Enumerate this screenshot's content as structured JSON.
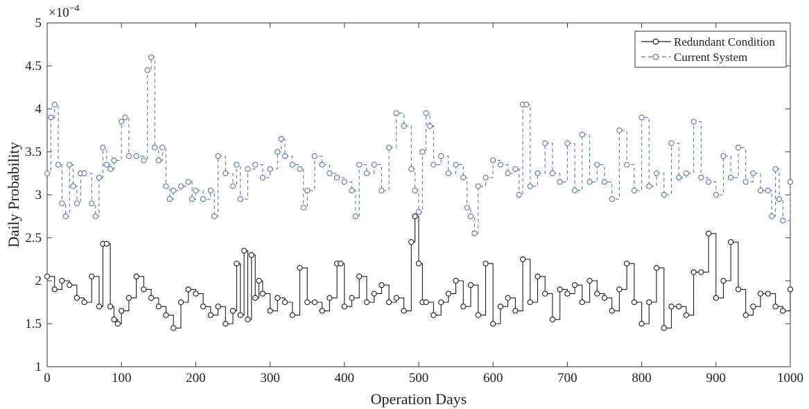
{
  "chart_data": {
    "type": "line",
    "xlabel": "Operation Days",
    "ylabel": "Daily Probability",
    "y_exponent_base": "×10",
    "y_exponent_power": "−4",
    "xlim": [
      0,
      1000
    ],
    "ylim": [
      1,
      5
    ],
    "x_ticks": [
      "0",
      "100",
      "200",
      "300",
      "400",
      "500",
      "600",
      "700",
      "800",
      "900",
      "1000"
    ],
    "y_ticks": [
      "1",
      "1.5",
      "2",
      "2.5",
      "3",
      "3.5",
      "4",
      "4.5",
      "5"
    ],
    "grid": false,
    "legend_position": "top-right",
    "series_style_note": "step line with circle markers",
    "series": [
      {
        "name": "Redundant Condition",
        "color": "#1a1a1a",
        "line_style": "solid",
        "x": [
          0,
          10,
          20,
          30,
          40,
          50,
          60,
          70,
          75,
          80,
          85,
          90,
          95,
          100,
          110,
          120,
          130,
          140,
          150,
          160,
          170,
          180,
          190,
          200,
          210,
          220,
          230,
          240,
          250,
          255,
          260,
          265,
          270,
          275,
          280,
          285,
          290,
          300,
          310,
          320,
          330,
          340,
          350,
          360,
          370,
          380,
          390,
          395,
          400,
          410,
          420,
          430,
          440,
          450,
          460,
          470,
          480,
          490,
          495,
          500,
          505,
          510,
          520,
          530,
          540,
          550,
          560,
          570,
          580,
          590,
          600,
          610,
          620,
          630,
          640,
          650,
          660,
          670,
          680,
          690,
          700,
          710,
          720,
          730,
          740,
          750,
          760,
          770,
          780,
          790,
          800,
          810,
          820,
          830,
          840,
          850,
          860,
          870,
          880,
          890,
          900,
          910,
          920,
          930,
          940,
          950,
          960,
          970,
          980,
          990,
          1000
        ],
        "values": [
          2.05,
          1.9,
          2.0,
          1.95,
          1.8,
          1.75,
          2.05,
          1.7,
          2.43,
          2.43,
          1.7,
          1.55,
          1.5,
          1.65,
          1.8,
          2.05,
          1.9,
          1.8,
          1.7,
          1.6,
          1.45,
          1.75,
          1.9,
          1.85,
          1.7,
          1.6,
          1.7,
          1.5,
          1.65,
          2.2,
          1.6,
          2.35,
          1.55,
          2.3,
          1.8,
          2.0,
          1.85,
          1.65,
          1.8,
          1.75,
          1.6,
          2.15,
          1.75,
          1.75,
          1.65,
          1.8,
          2.2,
          2.2,
          1.7,
          1.8,
          2.05,
          1.75,
          1.85,
          1.95,
          1.75,
          1.8,
          1.65,
          2.45,
          2.75,
          2.2,
          1.75,
          1.75,
          1.6,
          1.75,
          1.85,
          2.0,
          1.7,
          1.95,
          1.6,
          2.2,
          1.5,
          1.7,
          1.8,
          1.65,
          2.25,
          1.75,
          2.05,
          1.85,
          1.55,
          1.9,
          1.85,
          1.95,
          1.75,
          2.0,
          1.85,
          1.8,
          1.65,
          1.9,
          2.2,
          1.75,
          1.5,
          1.75,
          2.15,
          1.45,
          1.7,
          1.7,
          1.6,
          2.1,
          2.1,
          2.55,
          1.8,
          2.0,
          2.45,
          1.9,
          1.6,
          1.7,
          1.85,
          1.85,
          1.7,
          1.65,
          1.9
        ]
      },
      {
        "name": "Current System",
        "color": "#5b76ad",
        "line_style": "dashed",
        "x": [
          0,
          5,
          10,
          15,
          20,
          25,
          30,
          35,
          40,
          45,
          50,
          60,
          65,
          70,
          75,
          80,
          85,
          90,
          100,
          105,
          110,
          120,
          130,
          135,
          140,
          145,
          150,
          155,
          160,
          165,
          170,
          180,
          190,
          195,
          200,
          210,
          220,
          225,
          230,
          240,
          250,
          255,
          260,
          270,
          280,
          290,
          300,
          310,
          315,
          320,
          330,
          340,
          345,
          350,
          360,
          370,
          380,
          390,
          400,
          410,
          415,
          420,
          430,
          440,
          450,
          460,
          470,
          480,
          490,
          495,
          500,
          505,
          510,
          515,
          520,
          530,
          540,
          550,
          560,
          565,
          570,
          575,
          580,
          590,
          600,
          610,
          620,
          630,
          635,
          640,
          645,
          650,
          660,
          670,
          680,
          690,
          700,
          710,
          720,
          730,
          740,
          750,
          760,
          770,
          780,
          790,
          800,
          810,
          820,
          830,
          840,
          850,
          860,
          870,
          880,
          890,
          900,
          910,
          920,
          930,
          940,
          950,
          960,
          970,
          975,
          980,
          985,
          990,
          1000
        ],
        "values": [
          3.25,
          3.9,
          4.05,
          3.35,
          2.9,
          2.75,
          3.35,
          3.1,
          2.9,
          3.25,
          3.25,
          2.9,
          2.75,
          3.2,
          3.55,
          3.35,
          3.3,
          3.4,
          3.85,
          3.9,
          3.45,
          3.45,
          3.4,
          4.45,
          4.6,
          3.55,
          3.4,
          3.55,
          3.1,
          2.95,
          3.05,
          3.1,
          3.15,
          2.95,
          3.05,
          2.95,
          3.05,
          2.75,
          3.45,
          3.25,
          3.1,
          3.35,
          2.95,
          3.3,
          3.35,
          3.2,
          3.3,
          3.5,
          3.65,
          3.45,
          3.35,
          3.3,
          2.85,
          3.05,
          3.45,
          3.35,
          3.25,
          3.2,
          3.15,
          3.05,
          2.75,
          3.35,
          3.25,
          3.35,
          3.05,
          3.55,
          3.95,
          3.8,
          3.3,
          3.05,
          2.8,
          3.5,
          3.95,
          3.8,
          3.35,
          3.45,
          3.25,
          3.35,
          3.2,
          2.85,
          2.75,
          2.55,
          3.1,
          3.2,
          3.4,
          3.35,
          3.25,
          3.3,
          3.0,
          4.05,
          4.05,
          3.1,
          3.25,
          3.6,
          3.25,
          3.15,
          3.6,
          3.05,
          3.7,
          3.15,
          3.35,
          3.15,
          2.95,
          3.75,
          3.35,
          3.05,
          3.9,
          3.1,
          3.25,
          3.0,
          3.6,
          3.2,
          3.25,
          3.85,
          3.2,
          3.15,
          3.0,
          3.45,
          3.2,
          3.55,
          3.15,
          3.25,
          3.05,
          3.05,
          2.75,
          3.3,
          2.95,
          2.7,
          3.15
        ]
      }
    ]
  }
}
